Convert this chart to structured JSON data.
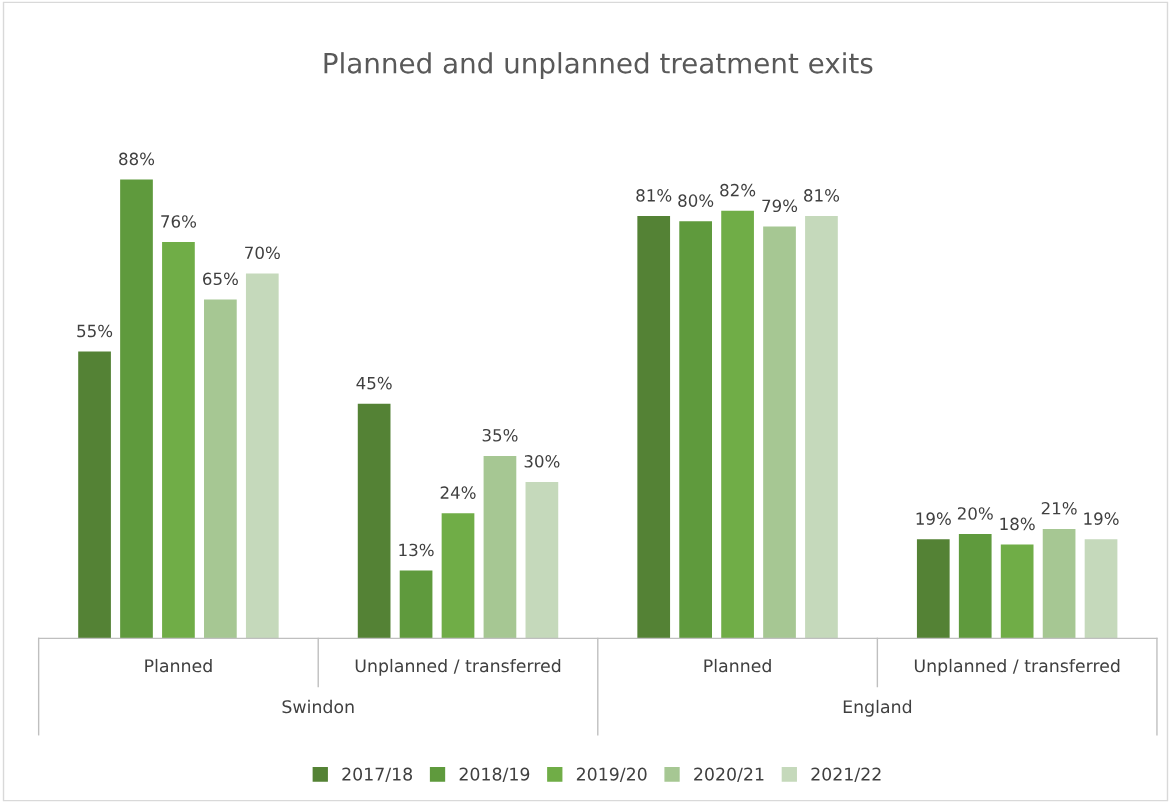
{
  "chart_data": {
    "type": "bar",
    "title": "Planned and unplanned treatment exits",
    "categories": [
      "Planned",
      "Unplanned / transferred",
      "Planned",
      "Unplanned / transferred"
    ],
    "annotations": [
      "Swindon",
      "England"
    ],
    "series": [
      {
        "name": "2017/18",
        "color": "#548235",
        "values": [
          55,
          45,
          81,
          19
        ],
        "value_labels": [
          "55%",
          "45%",
          "81%",
          "19%"
        ]
      },
      {
        "name": "2018/19",
        "color": "#5f9a3d",
        "values": [
          88,
          13,
          80,
          20
        ],
        "value_labels": [
          "88%",
          "13%",
          "80%",
          "20%"
        ]
      },
      {
        "name": "2019/20",
        "color": "#70ad47",
        "values": [
          76,
          24,
          82,
          18
        ],
        "value_labels": [
          "76%",
          "24%",
          "82%",
          "18%"
        ]
      },
      {
        "name": "2020/21",
        "color": "#a6c793",
        "values": [
          65,
          35,
          79,
          21
        ],
        "value_labels": [
          "65%",
          "35%",
          "79%",
          "21%"
        ]
      },
      {
        "name": "2021/22",
        "color": "#c5d9bb",
        "values": [
          70,
          30,
          81,
          19
        ],
        "value_labels": [
          "70%",
          "30%",
          "81%",
          "19%"
        ]
      }
    ],
    "tick_labels": "x",
    "legend": "bottom"
  }
}
